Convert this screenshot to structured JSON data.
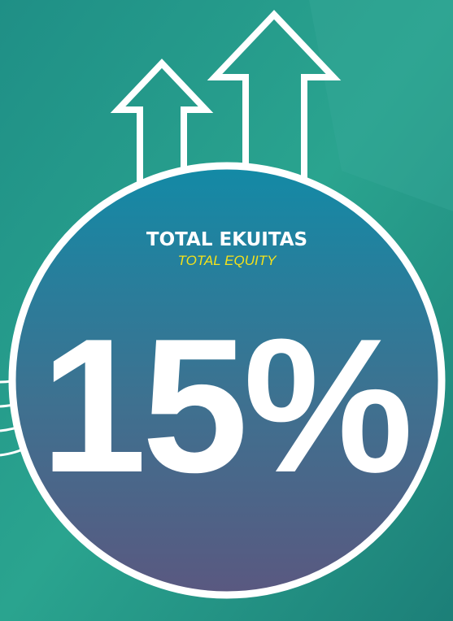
{
  "header": {
    "title": "TOTAL EKUITAS",
    "subtitle": "TOTAL EQUITY"
  },
  "figure": {
    "value": "15%"
  }
}
